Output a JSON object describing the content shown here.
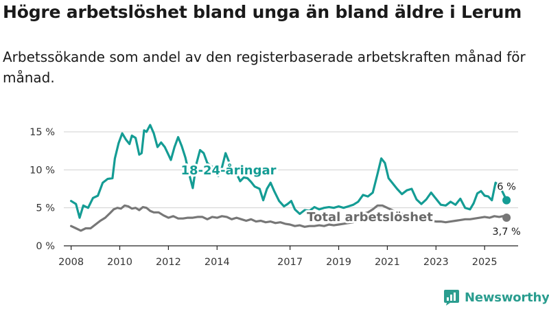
{
  "title": "Högre arbetslöshet bland unga än bland äldre i Lerum",
  "subtitle": "Arbetssökande som andel av den registerbaserade arbetskraften månad för månad.",
  "brand": {
    "name": "Newsworthy",
    "icon": "bar-chart-logo-icon",
    "color": "#2a9d8f"
  },
  "chart_data": {
    "type": "line",
    "x_ticks": [
      2008,
      2010,
      2012,
      2014,
      2017,
      2019,
      2021,
      2023,
      2025
    ],
    "x_range": [
      2007.7,
      2026.8
    ],
    "y_ticks": [
      {
        "value": 0,
        "label": "0 %"
      },
      {
        "value": 5,
        "label": "5 %"
      },
      {
        "value": 10,
        "label": "10 %"
      },
      {
        "value": 15,
        "label": "15 %"
      }
    ],
    "ylim": [
      0,
      16
    ],
    "grid": true,
    "series": [
      {
        "name": "18-24-åringar",
        "color": "#149c94",
        "end_label": "6 %",
        "points": [
          [
            2008.0,
            5.9
          ],
          [
            2008.2,
            5.5
          ],
          [
            2008.35,
            3.7
          ],
          [
            2008.5,
            5.3
          ],
          [
            2008.7,
            5.0
          ],
          [
            2008.9,
            6.3
          ],
          [
            2009.1,
            6.6
          ],
          [
            2009.3,
            8.3
          ],
          [
            2009.5,
            8.8
          ],
          [
            2009.7,
            8.9
          ],
          [
            2009.8,
            11.5
          ],
          [
            2009.95,
            13.5
          ],
          [
            2010.1,
            14.8
          ],
          [
            2010.25,
            14.0
          ],
          [
            2010.4,
            13.4
          ],
          [
            2010.5,
            14.5
          ],
          [
            2010.65,
            14.2
          ],
          [
            2010.8,
            12.0
          ],
          [
            2010.9,
            12.2
          ],
          [
            2011.0,
            15.2
          ],
          [
            2011.1,
            15.0
          ],
          [
            2011.25,
            15.9
          ],
          [
            2011.4,
            14.8
          ],
          [
            2011.55,
            13.0
          ],
          [
            2011.7,
            13.6
          ],
          [
            2011.85,
            13.0
          ],
          [
            2012.0,
            12.0
          ],
          [
            2012.1,
            11.3
          ],
          [
            2012.25,
            13.0
          ],
          [
            2012.4,
            14.3
          ],
          [
            2012.55,
            13.1
          ],
          [
            2012.7,
            11.6
          ],
          [
            2012.85,
            9.5
          ],
          [
            2013.0,
            7.6
          ],
          [
            2013.15,
            10.8
          ],
          [
            2013.3,
            12.6
          ],
          [
            2013.45,
            12.2
          ],
          [
            2013.6,
            10.9
          ],
          [
            2013.75,
            10.5
          ],
          [
            2013.9,
            10.2
          ],
          [
            2014.05,
            9.2
          ],
          [
            2014.2,
            10.3
          ],
          [
            2014.35,
            12.2
          ],
          [
            2014.5,
            11.0
          ],
          [
            2014.65,
            10.2
          ],
          [
            2014.8,
            9.5
          ],
          [
            2014.95,
            8.5
          ],
          [
            2015.1,
            9.0
          ],
          [
            2015.25,
            8.9
          ],
          [
            2015.4,
            8.4
          ],
          [
            2015.55,
            7.8
          ],
          [
            2015.75,
            7.5
          ],
          [
            2015.9,
            6.0
          ],
          [
            2016.05,
            7.5
          ],
          [
            2016.2,
            8.3
          ],
          [
            2016.35,
            7.2
          ],
          [
            2016.55,
            5.9
          ],
          [
            2016.75,
            5.2
          ],
          [
            2016.9,
            5.5
          ],
          [
            2017.05,
            5.9
          ],
          [
            2017.2,
            4.8
          ],
          [
            2017.4,
            4.2
          ],
          [
            2017.6,
            4.7
          ],
          [
            2017.8,
            4.6
          ],
          [
            2018.0,
            5.1
          ],
          [
            2018.2,
            4.8
          ],
          [
            2018.4,
            5.0
          ],
          [
            2018.6,
            5.1
          ],
          [
            2018.8,
            5.0
          ],
          [
            2019.0,
            5.2
          ],
          [
            2019.2,
            5.0
          ],
          [
            2019.4,
            5.2
          ],
          [
            2019.6,
            5.4
          ],
          [
            2019.8,
            5.8
          ],
          [
            2020.0,
            6.7
          ],
          [
            2020.2,
            6.5
          ],
          [
            2020.4,
            7.0
          ],
          [
            2020.6,
            9.5
          ],
          [
            2020.75,
            11.5
          ],
          [
            2020.9,
            10.9
          ],
          [
            2021.05,
            8.9
          ],
          [
            2021.2,
            8.3
          ],
          [
            2021.4,
            7.5
          ],
          [
            2021.6,
            6.8
          ],
          [
            2021.8,
            7.3
          ],
          [
            2022.0,
            7.5
          ],
          [
            2022.2,
            6.1
          ],
          [
            2022.4,
            5.5
          ],
          [
            2022.6,
            6.1
          ],
          [
            2022.8,
            7.0
          ],
          [
            2023.0,
            6.2
          ],
          [
            2023.2,
            5.4
          ],
          [
            2023.4,
            5.3
          ],
          [
            2023.6,
            5.8
          ],
          [
            2023.8,
            5.4
          ],
          [
            2024.0,
            6.2
          ],
          [
            2024.2,
            5.0
          ],
          [
            2024.4,
            4.8
          ],
          [
            2024.55,
            5.6
          ],
          [
            2024.7,
            6.9
          ],
          [
            2024.85,
            7.2
          ],
          [
            2025.0,
            6.6
          ],
          [
            2025.15,
            6.5
          ],
          [
            2025.3,
            6.0
          ],
          [
            2025.45,
            8.3
          ],
          [
            2025.6,
            7.9
          ],
          [
            2025.75,
            7.0
          ],
          [
            2025.9,
            6.0
          ]
        ]
      },
      {
        "name": "Total arbetslöshet",
        "color": "#777777",
        "end_label": "3,7 %",
        "points": [
          [
            2008.0,
            2.6
          ],
          [
            2008.2,
            2.3
          ],
          [
            2008.4,
            2.0
          ],
          [
            2008.6,
            2.3
          ],
          [
            2008.8,
            2.3
          ],
          [
            2009.0,
            2.8
          ],
          [
            2009.2,
            3.3
          ],
          [
            2009.4,
            3.7
          ],
          [
            2009.6,
            4.3
          ],
          [
            2009.75,
            4.8
          ],
          [
            2009.9,
            5.0
          ],
          [
            2010.05,
            4.9
          ],
          [
            2010.2,
            5.3
          ],
          [
            2010.35,
            5.2
          ],
          [
            2010.5,
            4.9
          ],
          [
            2010.65,
            5.0
          ],
          [
            2010.8,
            4.7
          ],
          [
            2010.95,
            5.1
          ],
          [
            2011.1,
            5.0
          ],
          [
            2011.25,
            4.6
          ],
          [
            2011.4,
            4.4
          ],
          [
            2011.6,
            4.4
          ],
          [
            2011.8,
            4.0
          ],
          [
            2012.0,
            3.7
          ],
          [
            2012.2,
            3.9
          ],
          [
            2012.4,
            3.6
          ],
          [
            2012.6,
            3.6
          ],
          [
            2012.8,
            3.7
          ],
          [
            2013.0,
            3.7
          ],
          [
            2013.2,
            3.8
          ],
          [
            2013.4,
            3.8
          ],
          [
            2013.6,
            3.5
          ],
          [
            2013.8,
            3.8
          ],
          [
            2014.0,
            3.7
          ],
          [
            2014.2,
            3.9
          ],
          [
            2014.4,
            3.8
          ],
          [
            2014.6,
            3.5
          ],
          [
            2014.8,
            3.7
          ],
          [
            2015.0,
            3.5
          ],
          [
            2015.2,
            3.3
          ],
          [
            2015.4,
            3.5
          ],
          [
            2015.6,
            3.2
          ],
          [
            2015.8,
            3.3
          ],
          [
            2016.0,
            3.1
          ],
          [
            2016.2,
            3.2
          ],
          [
            2016.4,
            3.0
          ],
          [
            2016.6,
            3.1
          ],
          [
            2016.8,
            2.9
          ],
          [
            2017.0,
            2.8
          ],
          [
            2017.2,
            2.6
          ],
          [
            2017.4,
            2.7
          ],
          [
            2017.6,
            2.5
          ],
          [
            2017.8,
            2.6
          ],
          [
            2018.0,
            2.6
          ],
          [
            2018.2,
            2.7
          ],
          [
            2018.4,
            2.6
          ],
          [
            2018.6,
            2.8
          ],
          [
            2018.8,
            2.7
          ],
          [
            2019.0,
            2.8
          ],
          [
            2019.2,
            2.9
          ],
          [
            2019.4,
            3.0
          ],
          [
            2019.6,
            3.1
          ],
          [
            2019.8,
            3.5
          ],
          [
            2020.0,
            4.2
          ],
          [
            2020.2,
            4.4
          ],
          [
            2020.4,
            4.8
          ],
          [
            2020.6,
            5.3
          ],
          [
            2020.8,
            5.3
          ],
          [
            2021.0,
            5.0
          ],
          [
            2021.2,
            4.7
          ],
          [
            2021.4,
            4.3
          ],
          [
            2021.6,
            4.2
          ],
          [
            2021.8,
            4.1
          ],
          [
            2022.0,
            3.8
          ],
          [
            2022.2,
            3.6
          ],
          [
            2022.4,
            3.5
          ],
          [
            2022.6,
            3.4
          ],
          [
            2022.8,
            3.3
          ],
          [
            2023.0,
            3.2
          ],
          [
            2023.2,
            3.2
          ],
          [
            2023.4,
            3.1
          ],
          [
            2023.6,
            3.2
          ],
          [
            2023.8,
            3.3
          ],
          [
            2024.0,
            3.4
          ],
          [
            2024.2,
            3.5
          ],
          [
            2024.4,
            3.5
          ],
          [
            2024.6,
            3.6
          ],
          [
            2024.8,
            3.7
          ],
          [
            2025.0,
            3.8
          ],
          [
            2025.2,
            3.7
          ],
          [
            2025.4,
            3.9
          ],
          [
            2025.6,
            3.8
          ],
          [
            2025.75,
            3.9
          ],
          [
            2025.9,
            3.7
          ]
        ]
      }
    ]
  }
}
